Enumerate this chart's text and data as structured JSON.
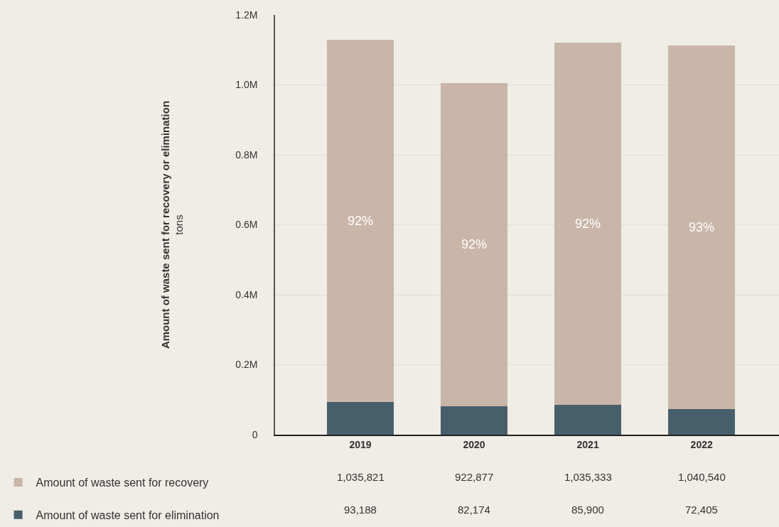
{
  "chart_data": {
    "type": "bar",
    "stacked": true,
    "ylabel": "Amount of waste sent for recovery or elimination\ntons",
    "categories": [
      "2019",
      "2020",
      "2021",
      "2022"
    ],
    "series": [
      {
        "name": "Amount of waste sent for elimination",
        "color": "#475f6b",
        "values": [
          93188,
          82174,
          85900,
          72405
        ]
      },
      {
        "name": "Amount of waste sent for recovery",
        "color": "#c9b6a8",
        "values": [
          1035821,
          922877,
          1035333,
          1040540
        ]
      }
    ],
    "ylim": [
      0,
      1200000
    ],
    "yticks": [
      0,
      {
        "value": 200000,
        "label": "0.2M"
      },
      {
        "value": 400000,
        "label": "0.4M"
      },
      {
        "value": 600000,
        "label": "0.6M"
      },
      {
        "value": 800000,
        "label": "0.8M"
      },
      {
        "value": 1000000,
        "label": "1.0M"
      },
      {
        "value": 1200000,
        "label": "1.2M"
      }
    ],
    "grid": "y",
    "legend": "bottom left",
    "annotations": [
      "92%",
      "92%",
      "92%",
      "93%",
      "1,035,821",
      "922,877",
      "1,035,333",
      "1,040,540",
      "93,188",
      "82,174",
      "85,900",
      "72,405"
    ]
  }
}
